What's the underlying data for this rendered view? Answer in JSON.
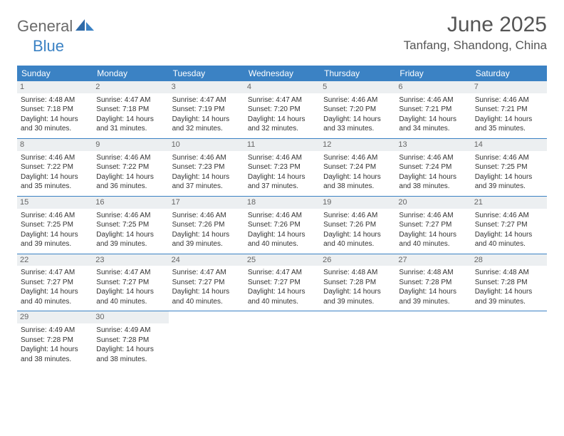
{
  "logo": {
    "text1": "General",
    "text2": "Blue"
  },
  "title": "June 2025",
  "location": "Tanfang, Shandong, China",
  "colors": {
    "header_bg": "#3b82c4",
    "header_text": "#ffffff",
    "daynum_bg": "#eceff1",
    "daynum_text": "#666666",
    "body_text": "#333333",
    "rule": "#3b82c4",
    "logo_gray": "#6a6a6a",
    "logo_blue": "#3b82c4"
  },
  "weekdays": [
    "Sunday",
    "Monday",
    "Tuesday",
    "Wednesday",
    "Thursday",
    "Friday",
    "Saturday"
  ],
  "weeks": [
    [
      {
        "n": "1",
        "sr": "4:48 AM",
        "ss": "7:18 PM",
        "dl": "14 hours and 30 minutes."
      },
      {
        "n": "2",
        "sr": "4:47 AM",
        "ss": "7:18 PM",
        "dl": "14 hours and 31 minutes."
      },
      {
        "n": "3",
        "sr": "4:47 AM",
        "ss": "7:19 PM",
        "dl": "14 hours and 32 minutes."
      },
      {
        "n": "4",
        "sr": "4:47 AM",
        "ss": "7:20 PM",
        "dl": "14 hours and 32 minutes."
      },
      {
        "n": "5",
        "sr": "4:46 AM",
        "ss": "7:20 PM",
        "dl": "14 hours and 33 minutes."
      },
      {
        "n": "6",
        "sr": "4:46 AM",
        "ss": "7:21 PM",
        "dl": "14 hours and 34 minutes."
      },
      {
        "n": "7",
        "sr": "4:46 AM",
        "ss": "7:21 PM",
        "dl": "14 hours and 35 minutes."
      }
    ],
    [
      {
        "n": "8",
        "sr": "4:46 AM",
        "ss": "7:22 PM",
        "dl": "14 hours and 35 minutes."
      },
      {
        "n": "9",
        "sr": "4:46 AM",
        "ss": "7:22 PM",
        "dl": "14 hours and 36 minutes."
      },
      {
        "n": "10",
        "sr": "4:46 AM",
        "ss": "7:23 PM",
        "dl": "14 hours and 37 minutes."
      },
      {
        "n": "11",
        "sr": "4:46 AM",
        "ss": "7:23 PM",
        "dl": "14 hours and 37 minutes."
      },
      {
        "n": "12",
        "sr": "4:46 AM",
        "ss": "7:24 PM",
        "dl": "14 hours and 38 minutes."
      },
      {
        "n": "13",
        "sr": "4:46 AM",
        "ss": "7:24 PM",
        "dl": "14 hours and 38 minutes."
      },
      {
        "n": "14",
        "sr": "4:46 AM",
        "ss": "7:25 PM",
        "dl": "14 hours and 39 minutes."
      }
    ],
    [
      {
        "n": "15",
        "sr": "4:46 AM",
        "ss": "7:25 PM",
        "dl": "14 hours and 39 minutes."
      },
      {
        "n": "16",
        "sr": "4:46 AM",
        "ss": "7:25 PM",
        "dl": "14 hours and 39 minutes."
      },
      {
        "n": "17",
        "sr": "4:46 AM",
        "ss": "7:26 PM",
        "dl": "14 hours and 39 minutes."
      },
      {
        "n": "18",
        "sr": "4:46 AM",
        "ss": "7:26 PM",
        "dl": "14 hours and 40 minutes."
      },
      {
        "n": "19",
        "sr": "4:46 AM",
        "ss": "7:26 PM",
        "dl": "14 hours and 40 minutes."
      },
      {
        "n": "20",
        "sr": "4:46 AM",
        "ss": "7:27 PM",
        "dl": "14 hours and 40 minutes."
      },
      {
        "n": "21",
        "sr": "4:46 AM",
        "ss": "7:27 PM",
        "dl": "14 hours and 40 minutes."
      }
    ],
    [
      {
        "n": "22",
        "sr": "4:47 AM",
        "ss": "7:27 PM",
        "dl": "14 hours and 40 minutes."
      },
      {
        "n": "23",
        "sr": "4:47 AM",
        "ss": "7:27 PM",
        "dl": "14 hours and 40 minutes."
      },
      {
        "n": "24",
        "sr": "4:47 AM",
        "ss": "7:27 PM",
        "dl": "14 hours and 40 minutes."
      },
      {
        "n": "25",
        "sr": "4:47 AM",
        "ss": "7:27 PM",
        "dl": "14 hours and 40 minutes."
      },
      {
        "n": "26",
        "sr": "4:48 AM",
        "ss": "7:28 PM",
        "dl": "14 hours and 39 minutes."
      },
      {
        "n": "27",
        "sr": "4:48 AM",
        "ss": "7:28 PM",
        "dl": "14 hours and 39 minutes."
      },
      {
        "n": "28",
        "sr": "4:48 AM",
        "ss": "7:28 PM",
        "dl": "14 hours and 39 minutes."
      }
    ],
    [
      {
        "n": "29",
        "sr": "4:49 AM",
        "ss": "7:28 PM",
        "dl": "14 hours and 38 minutes."
      },
      {
        "n": "30",
        "sr": "4:49 AM",
        "ss": "7:28 PM",
        "dl": "14 hours and 38 minutes."
      },
      null,
      null,
      null,
      null,
      null
    ]
  ],
  "labels": {
    "sunrise": "Sunrise:",
    "sunset": "Sunset:",
    "daylight": "Daylight:"
  }
}
